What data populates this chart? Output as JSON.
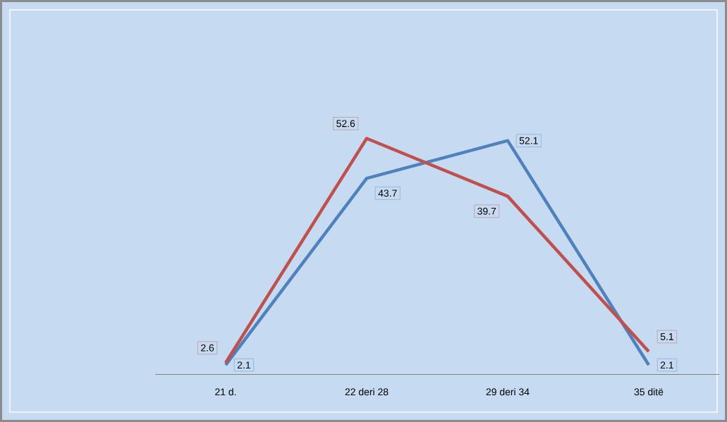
{
  "chart_data": {
    "type": "line",
    "categories": [
      "21 d.",
      "22 deri 28",
      "29 deri 34",
      "35 ditë"
    ],
    "series": [
      {
        "color": "#4f81bd",
        "values": [
          2.1,
          43.7,
          52.1,
          2.1
        ]
      },
      {
        "color": "#c0504d",
        "values": [
          2.6,
          52.6,
          39.7,
          5.1
        ]
      }
    ],
    "tick_labels": "x",
    "data_labels": true,
    "grid": false,
    "marker": "none",
    "line_style": "solid"
  }
}
